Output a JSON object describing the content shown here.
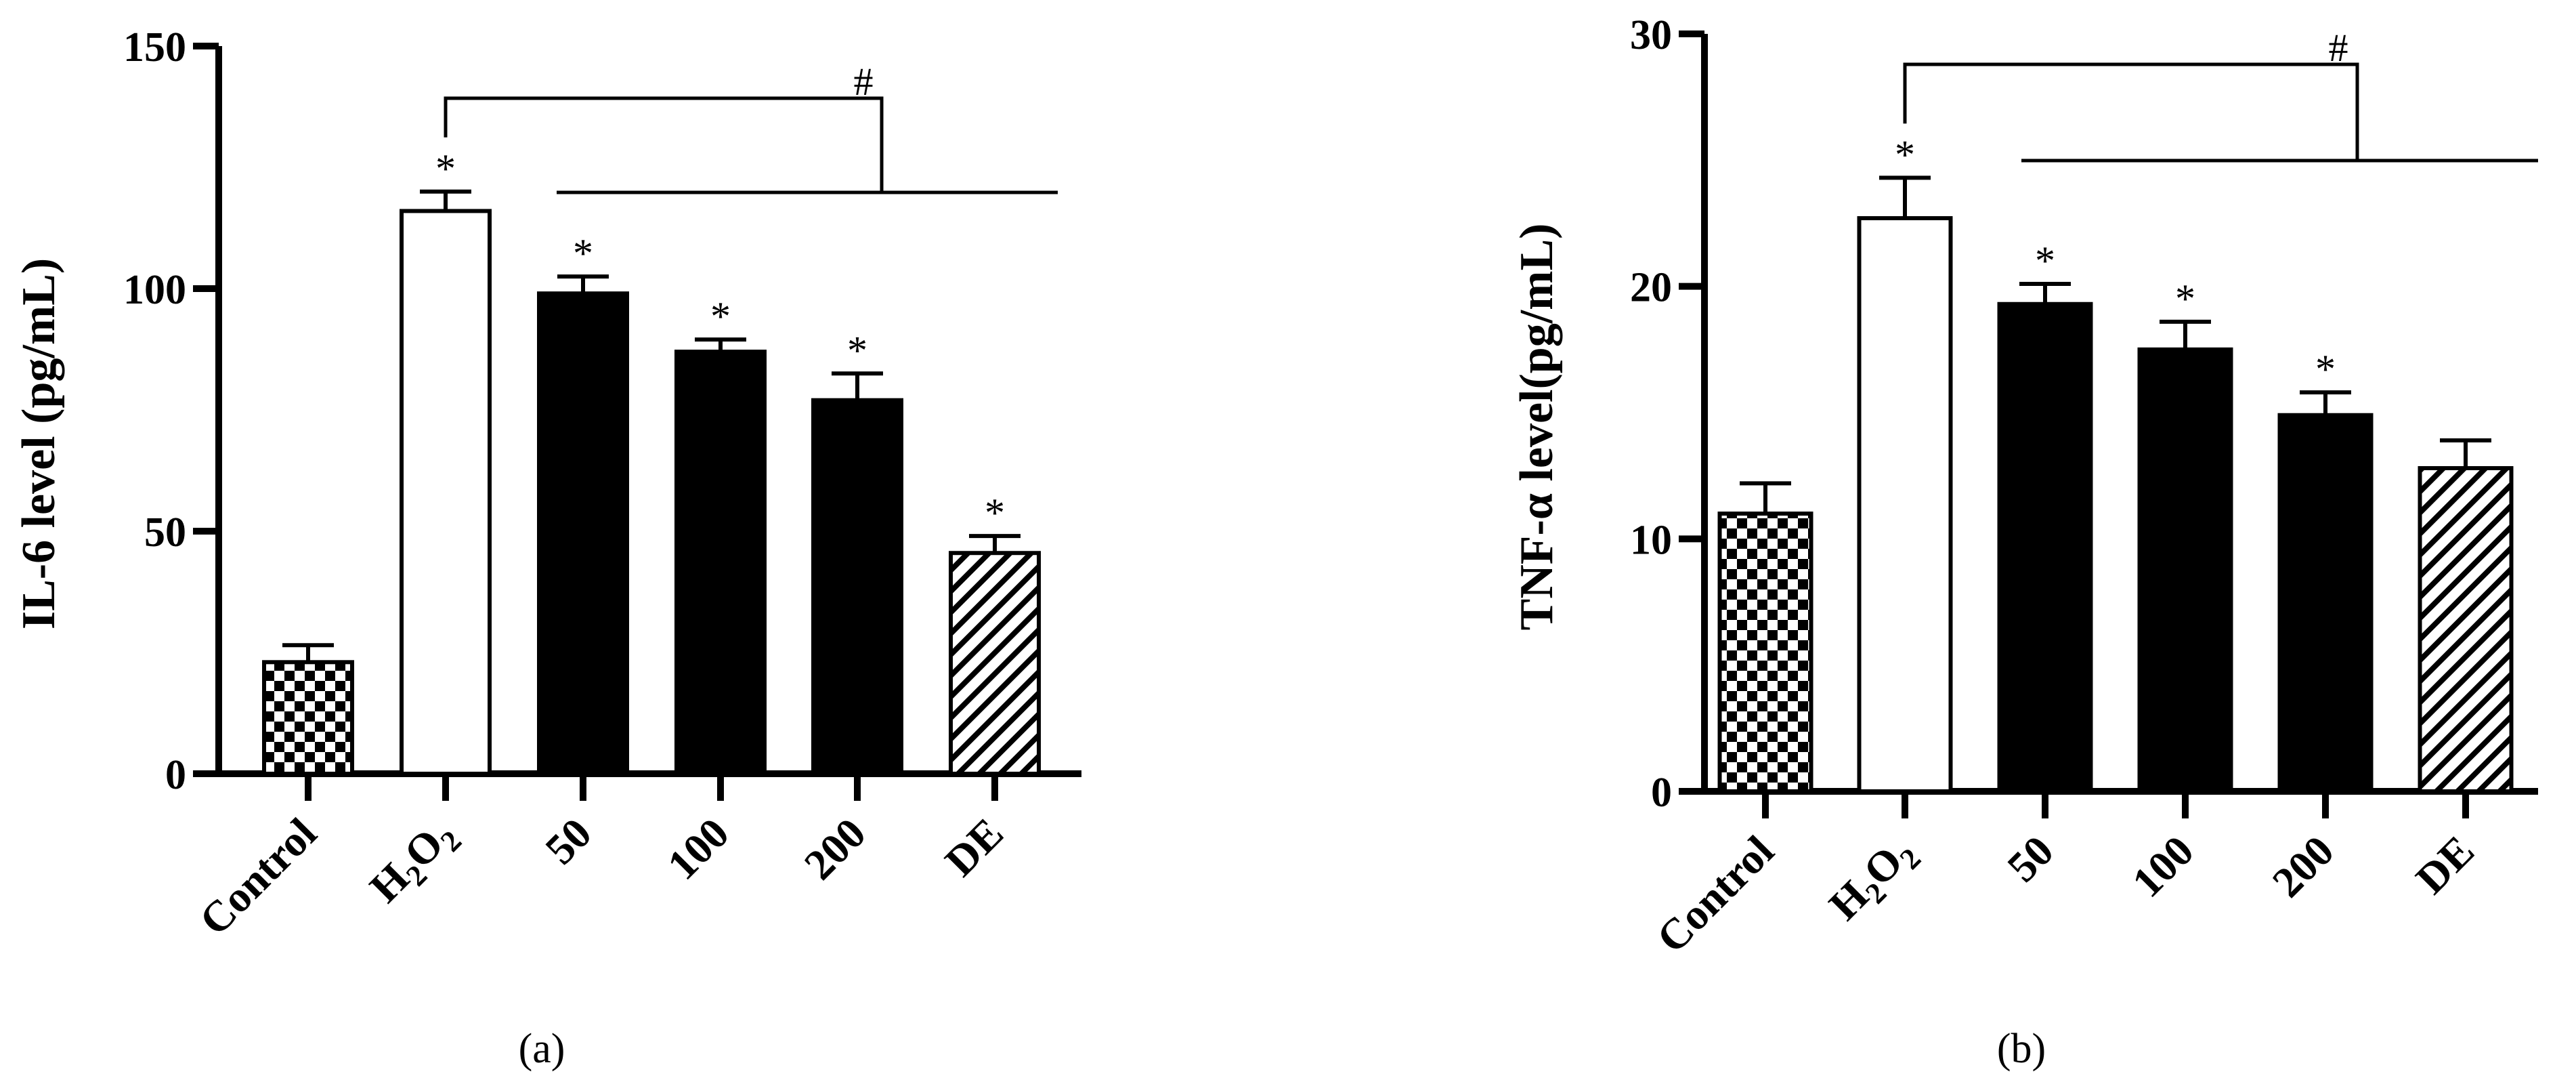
{
  "figure": {
    "colors": {
      "ink": "#000000",
      "paper": "#ffffff"
    }
  },
  "chart_data": [
    {
      "panel_label": "(a)",
      "type": "bar",
      "ylabel": "IL-6 level (pg/mL)",
      "ylim": [
        0,
        150
      ],
      "yticks": [
        "0",
        "50",
        "100",
        "150"
      ],
      "categories": [
        {
          "label": "Control"
        },
        {
          "label": "H",
          "sub1": "2",
          "mid": "O",
          "sub2": "2"
        },
        {
          "label": "50"
        },
        {
          "label": "100"
        },
        {
          "label": "200"
        },
        {
          "label": "DE"
        }
      ],
      "values": [
        23,
        116,
        99,
        87,
        77,
        45.5
      ],
      "errors": [
        3.5,
        4,
        3.5,
        2.5,
        5.5,
        3.5
      ],
      "fills": [
        "checker",
        "white",
        "black",
        "black",
        "black",
        "hatch"
      ],
      "stars": [
        "",
        "*",
        "*",
        "*",
        "*",
        "*"
      ],
      "bracket_label": "#"
    },
    {
      "panel_label": "(b)",
      "type": "bar",
      "ylabel": "TNF-α level(pg/mL)",
      "ylim": [
        0,
        30
      ],
      "yticks": [
        "0",
        "10",
        "20",
        "30"
      ],
      "categories": [
        {
          "label": "Control"
        },
        {
          "label": "H",
          "sub1": "2",
          "mid": "O",
          "sub2": "2"
        },
        {
          "label": "50"
        },
        {
          "label": "100"
        },
        {
          "label": "200"
        },
        {
          "label": "DE"
        }
      ],
      "values": [
        11,
        22.7,
        19.3,
        17.5,
        14.9,
        12.8
      ],
      "errors": [
        1.2,
        1.6,
        0.8,
        1.1,
        0.9,
        1.1
      ],
      "fills": [
        "checker",
        "white",
        "black",
        "black",
        "black",
        "hatch"
      ],
      "stars": [
        "",
        "*",
        "*",
        "*",
        "*",
        ""
      ],
      "bracket_label": "#"
    }
  ]
}
